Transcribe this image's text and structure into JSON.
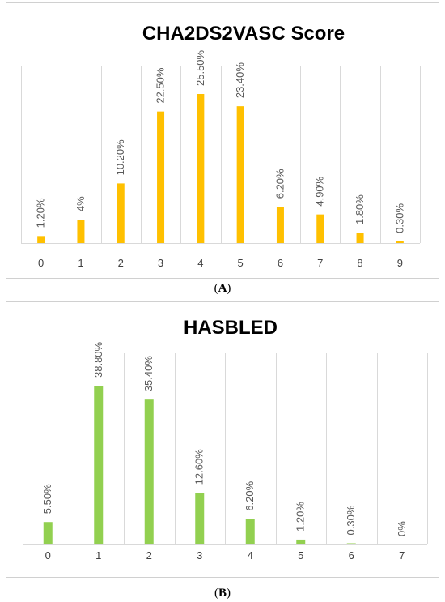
{
  "chart_data": [
    {
      "type": "bar",
      "title": "CHA2DS2VASC Score",
      "categories": [
        "0",
        "1",
        "2",
        "3",
        "4",
        "5",
        "6",
        "7",
        "8",
        "9"
      ],
      "values": [
        1.2,
        4,
        10.2,
        22.5,
        25.5,
        23.4,
        6.2,
        4.9,
        1.8,
        0.3
      ],
      "data_labels": [
        "1.20%",
        "4%",
        "10.20%",
        "22.50%",
        "25.50%",
        "23.40%",
        "6.20%",
        "4.90%",
        "1.80%",
        "0.30%"
      ],
      "ylim": [
        0,
        25.5
      ],
      "grid": "vertical",
      "color": "#ffc000",
      "caption": "A"
    },
    {
      "type": "bar",
      "title": "HASBLED",
      "categories": [
        "0",
        "1",
        "2",
        "3",
        "4",
        "5",
        "6",
        "7"
      ],
      "values": [
        5.5,
        38.8,
        35.4,
        12.6,
        6.2,
        1.2,
        0.3,
        0
      ],
      "data_labels": [
        "5.50%",
        "38.80%",
        "35.40%",
        "12.60%",
        "6.20%",
        "1.20%",
        "0.30%",
        "0%"
      ],
      "ylim": [
        0,
        38.8
      ],
      "grid": "vertical",
      "color": "#92d050",
      "caption": "B"
    }
  ]
}
